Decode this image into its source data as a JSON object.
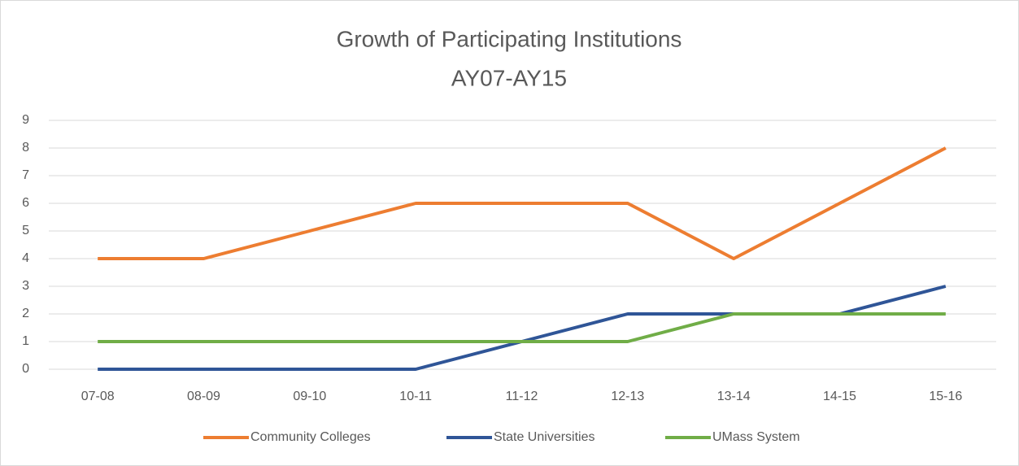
{
  "chart_data": {
    "type": "line",
    "title": "Growth of Participating Institutions",
    "subtitle": "AY07-AY15",
    "categories": [
      "07-08",
      "08-09",
      "09-10",
      "10-11",
      "11-12",
      "12-13",
      "13-14",
      "14-15",
      "15-16"
    ],
    "series": [
      {
        "name": "Community Colleges",
        "color": "#ed7d31",
        "values": [
          4,
          4,
          5,
          6,
          6,
          6,
          4,
          6,
          8
        ]
      },
      {
        "name": "State Universities",
        "color": "#2f5597",
        "values": [
          0,
          0,
          0,
          0,
          1,
          2,
          2,
          2,
          3
        ]
      },
      {
        "name": "UMass System",
        "color": "#70ad47",
        "values": [
          1,
          1,
          1,
          1,
          1,
          1,
          2,
          2,
          2
        ]
      }
    ],
    "ylim": [
      0,
      9
    ],
    "yticks": [
      0,
      1,
      2,
      3,
      4,
      5,
      6,
      7,
      8,
      9
    ],
    "grid": true,
    "legend": "bottom"
  }
}
